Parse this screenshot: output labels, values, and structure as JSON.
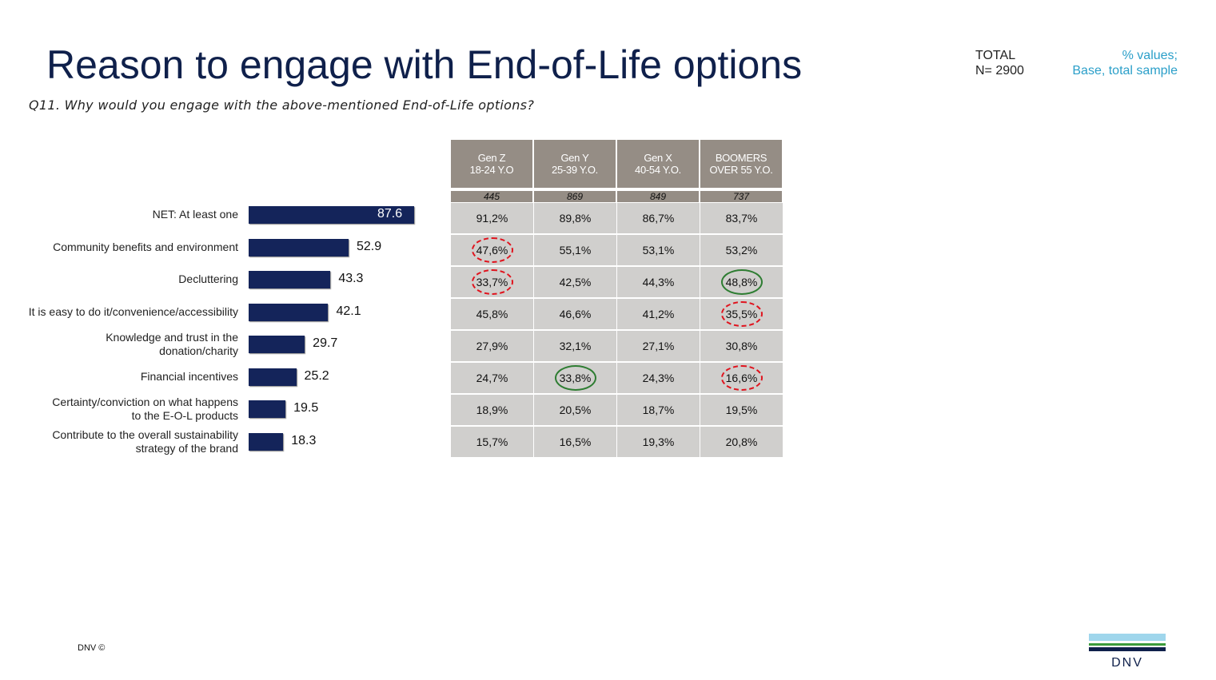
{
  "header": {
    "title": "Reason to engage with End-of-Life options",
    "question": "Q11. Why would you engage with the above-mentioned End-of-Life options?",
    "total_label": "TOTAL",
    "total_n": "N= 2900",
    "note_line1": "% values;",
    "note_line2": "Base, total sample"
  },
  "chart_data": {
    "type": "bar",
    "orientation": "horizontal",
    "categories": [
      "NET: At least one",
      "Community benefits and environment",
      "Decluttering",
      "It is easy to do it/convenience/accessibility",
      "Knowledge and trust in the donation/charity",
      "Financial incentives",
      "Certainty/conviction on what happens to the E-O-L products",
      "Contribute to the overall sustainability strategy of the brand"
    ],
    "values": [
      87.6,
      52.9,
      43.3,
      42.1,
      29.7,
      25.2,
      19.5,
      18.3
    ],
    "value_labels": [
      "87.6",
      "52.9",
      "43.3",
      "42.1",
      "29.7",
      "25.2",
      "19.5",
      "18.3"
    ],
    "bar_color": "#14245a"
  },
  "table": {
    "columns": [
      {
        "line1": "Gen Z",
        "line2": "18-24 Y.O",
        "n": "445"
      },
      {
        "line1": "Gen Y",
        "line2": "25-39 Y.O.",
        "n": "869"
      },
      {
        "line1": "Gen X",
        "line2": "40-54 Y.O.",
        "n": "849"
      },
      {
        "line1": "BOOMERS",
        "line2": "OVER 55 Y.O.",
        "n": "737"
      }
    ],
    "rows": [
      [
        "91,2%",
        "89,8%",
        "86,7%",
        "83,7%"
      ],
      [
        "47,6%",
        "55,1%",
        "53,1%",
        "53,2%"
      ],
      [
        "33,7%",
        "42,5%",
        "44,3%",
        "48,8%"
      ],
      [
        "45,8%",
        "46,6%",
        "41,2%",
        "35,5%"
      ],
      [
        "27,9%",
        "32,1%",
        "27,1%",
        "30,8%"
      ],
      [
        "24,7%",
        "33,8%",
        "24,3%",
        "16,6%"
      ],
      [
        "18,9%",
        "20,5%",
        "18,7%",
        "19,5%"
      ],
      [
        "15,7%",
        "16,5%",
        "19,3%",
        "20,8%"
      ]
    ],
    "highlights": [
      [
        null,
        null,
        null,
        null
      ],
      [
        "low",
        null,
        null,
        null
      ],
      [
        "low",
        null,
        null,
        "high"
      ],
      [
        null,
        null,
        null,
        "low"
      ],
      [
        null,
        null,
        null,
        null
      ],
      [
        null,
        "high",
        null,
        "low"
      ],
      [
        null,
        null,
        null,
        null
      ],
      [
        null,
        null,
        null,
        null
      ]
    ],
    "colors": {
      "low": "#e0141e",
      "high": "#2e7d32"
    }
  },
  "footer": {
    "copyright": "DNV ©",
    "logo_text": "DNV"
  }
}
